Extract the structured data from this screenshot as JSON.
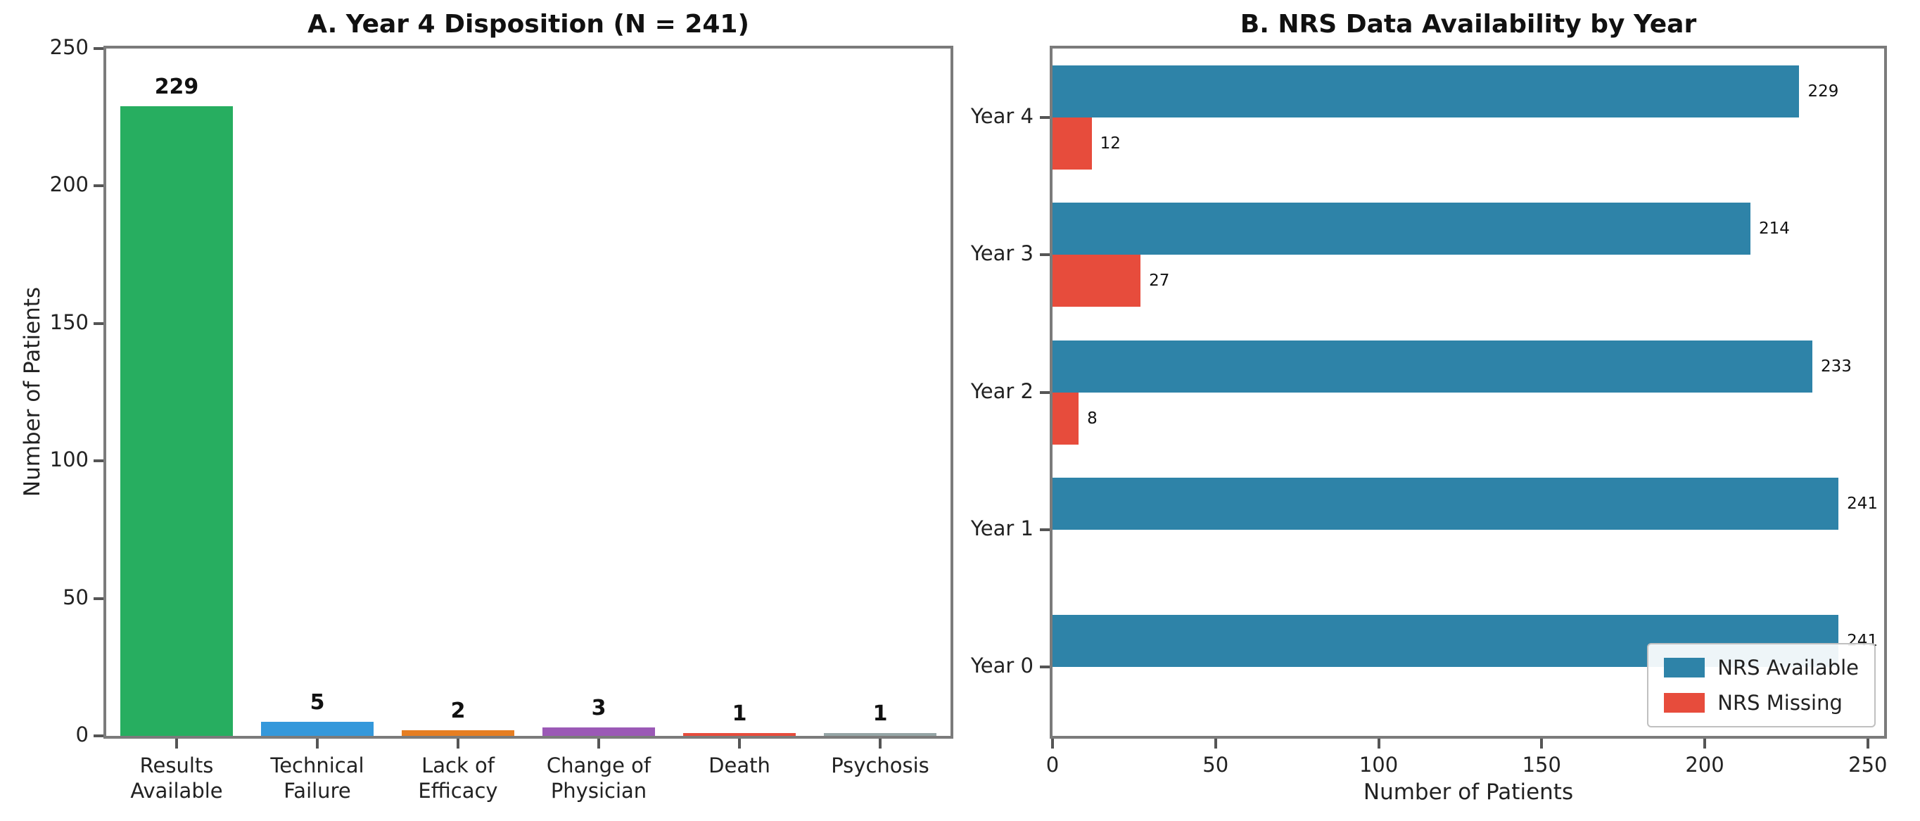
{
  "figure": {
    "background": "#ffffff"
  },
  "chart_data": [
    {
      "type": "bar",
      "title": "A. Year 4 Disposition (N = 241)",
      "xlabel": "",
      "ylabel": "Number of Patients",
      "ylim": [
        0,
        250
      ],
      "yticks": [
        0,
        50,
        100,
        150,
        200,
        250
      ],
      "grid": false,
      "categories": [
        "Results\nAvailable",
        "Technical\nFailure",
        "Lack of\nEfficacy",
        "Change of\nPhysician",
        "Death",
        "Psychosis"
      ],
      "values": [
        229,
        5,
        2,
        3,
        1,
        1
      ],
      "bar_colors": [
        "#27ae60",
        "#3498db",
        "#e67e22",
        "#9b59b6",
        "#e74c3c",
        "#95a5a6"
      ]
    },
    {
      "type": "bar",
      "orientation": "horizontal",
      "title": "B. NRS Data Availability by Year",
      "xlabel": "Number of Patients",
      "ylabel": "",
      "xlim": [
        0,
        255
      ],
      "xticks": [
        0,
        50,
        100,
        150,
        200,
        250
      ],
      "grid": false,
      "legend_position": "lower right",
      "categories": [
        "Year 4",
        "Year 3",
        "Year 2",
        "Year 1",
        "Year 0"
      ],
      "series": [
        {
          "name": "NRS Available",
          "color": "#2e83a8",
          "values": [
            229,
            214,
            233,
            241,
            241
          ]
        },
        {
          "name": "NRS Missing",
          "color": "#e74c3c",
          "values": [
            12,
            27,
            8,
            0,
            0
          ]
        }
      ]
    }
  ]
}
